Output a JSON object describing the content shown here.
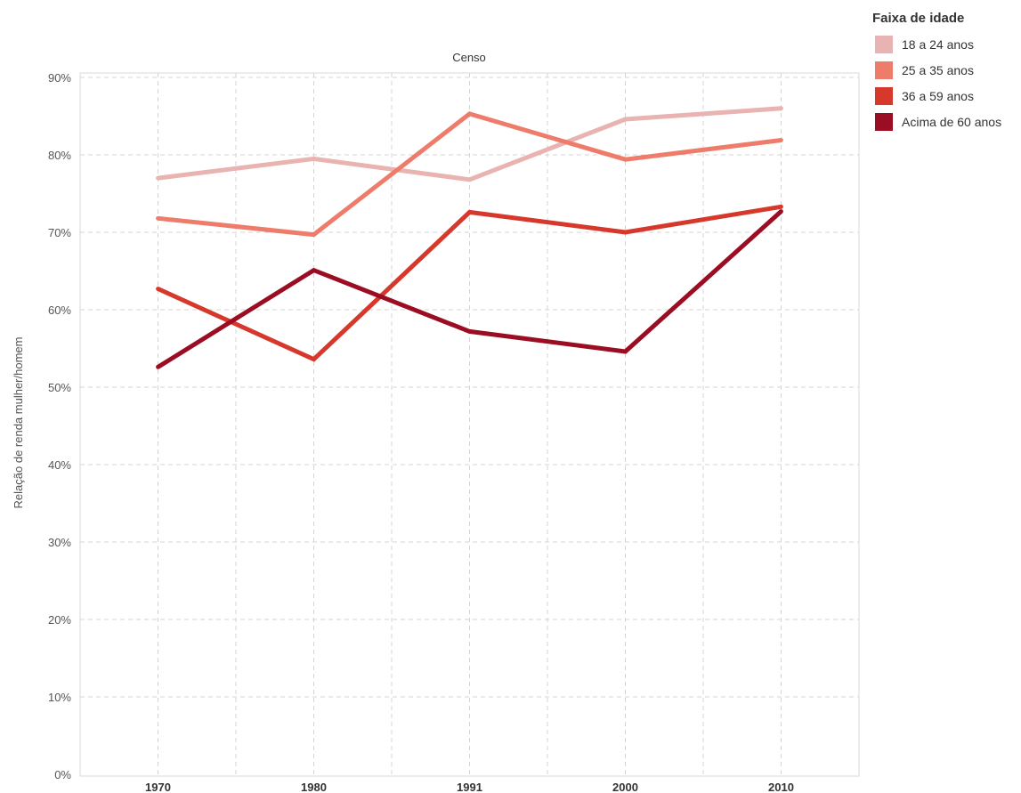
{
  "chart_data": {
    "type": "line",
    "title": "Censo",
    "xlabel": "",
    "ylabel": "Relação de renda mulher/homem",
    "categories": [
      "1970",
      "1980",
      "1991",
      "2000",
      "2010"
    ],
    "ylim": [
      0,
      90
    ],
    "yticks": [
      0,
      10,
      20,
      30,
      40,
      50,
      60,
      70,
      80,
      90
    ],
    "ytick_labels": [
      "0%",
      "10%",
      "20%",
      "30%",
      "40%",
      "50%",
      "60%",
      "70%",
      "80%",
      "90%"
    ],
    "grid": true,
    "legend_title": "Faixa de idade",
    "legend_position": "top-right",
    "series": [
      {
        "name": "18 a 24 anos",
        "color": "#e8b3b0",
        "values": [
          77,
          79.5,
          76.8,
          84.6,
          86
        ]
      },
      {
        "name": "25 a 35 anos",
        "color": "#ee7c6b",
        "values": [
          71.8,
          69.7,
          85.3,
          79.4,
          81.9
        ]
      },
      {
        "name": "36 a 59 anos",
        "color": "#d6382b",
        "values": [
          62.7,
          53.6,
          72.6,
          70,
          73.3
        ]
      },
      {
        "name": "Acima de 60 anos",
        "color": "#9a0d22",
        "values": [
          52.6,
          65.1,
          57.2,
          54.6,
          72.7
        ]
      }
    ]
  }
}
